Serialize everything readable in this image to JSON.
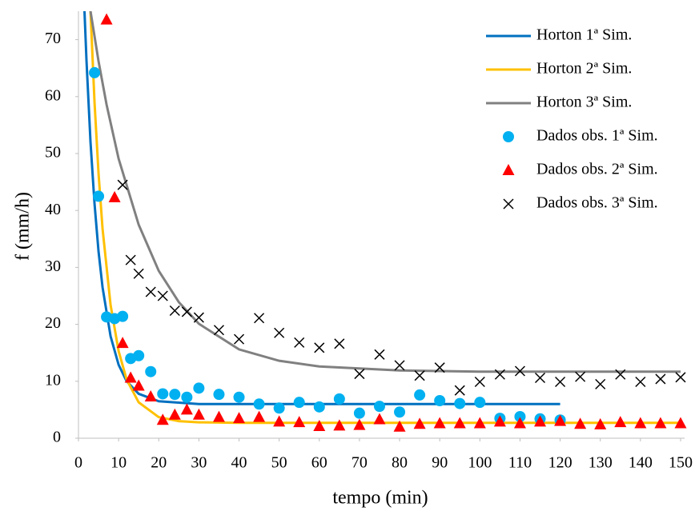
{
  "chart_data": {
    "type": "line",
    "xlabel": "tempo (min)",
    "ylabel": "f (mm/h)",
    "xlim": [
      0,
      151
    ],
    "ylim": [
      0,
      75
    ],
    "xticks": [
      0,
      10,
      20,
      30,
      40,
      50,
      60,
      70,
      80,
      90,
      100,
      110,
      120,
      130,
      140,
      150
    ],
    "yticks": [
      0,
      10,
      20,
      30,
      40,
      50,
      60,
      70
    ],
    "grid": false,
    "legend": "upper right",
    "series": [
      {
        "name": "Horton 1ª Sim.",
        "type": "line",
        "color": "#0070c0",
        "x": [
          1.5,
          2,
          3,
          4,
          5,
          6,
          8,
          10,
          12,
          15,
          20,
          30,
          120
        ],
        "values": [
          75.0,
          66.3,
          52.0,
          41.2,
          32.8,
          26.5,
          17.9,
          12.9,
          10.0,
          7.8,
          6.5,
          6.0,
          6.0
        ]
      },
      {
        "name": "Horton 2ª Sim.",
        "type": "line",
        "color": "#ffc000",
        "x": [
          3,
          4,
          5,
          6,
          8,
          10,
          12,
          15,
          20,
          25,
          30,
          40,
          150
        ],
        "values": [
          75.0,
          59.0,
          46.5,
          36.8,
          23.4,
          15.3,
          10.3,
          6.3,
          3.7,
          3.0,
          2.8,
          2.7,
          2.7
        ]
      },
      {
        "name": "Horton 3ª Sim.",
        "type": "line",
        "color": "#808080",
        "x": [
          3,
          5,
          7,
          10,
          15,
          20,
          25,
          30,
          40,
          50,
          60,
          80,
          100,
          150
        ],
        "values": [
          75.0,
          66.2,
          58.6,
          49.1,
          37.5,
          29.4,
          23.9,
          20.1,
          15.6,
          13.6,
          12.6,
          11.9,
          11.7,
          11.7
        ]
      },
      {
        "name": "Dados obs. 1ª Sim.",
        "type": "scatter",
        "marker": "circle",
        "color": "#00b0f0",
        "x": [
          4,
          5,
          7,
          9,
          11,
          13,
          15,
          18,
          21,
          24,
          27,
          30,
          35,
          40,
          45,
          50,
          55,
          60,
          65,
          70,
          75,
          80,
          85,
          90,
          95,
          100,
          105,
          110,
          115,
          120
        ],
        "values": [
          64.2,
          42.5,
          21.3,
          21.0,
          21.4,
          14.0,
          14.5,
          11.7,
          7.8,
          7.7,
          7.2,
          8.8,
          7.7,
          7.2,
          6.0,
          5.3,
          6.3,
          5.5,
          6.9,
          4.4,
          5.6,
          4.6,
          7.6,
          6.6,
          6.1,
          6.3,
          3.5,
          3.8,
          3.4,
          3.2
        ]
      },
      {
        "name": "Dados obs. 2ª Sim.",
        "type": "scatter",
        "marker": "triangle",
        "color": "#ff0000",
        "x": [
          7,
          9,
          11,
          13,
          15,
          18,
          21,
          24,
          27,
          30,
          35,
          40,
          45,
          50,
          55,
          60,
          65,
          70,
          75,
          80,
          85,
          90,
          95,
          100,
          105,
          110,
          115,
          120,
          125,
          130,
          135,
          140,
          145,
          150
        ],
        "values": [
          73.5,
          42.3,
          16.7,
          10.6,
          9.2,
          7.3,
          3.2,
          4.1,
          5.0,
          4.1,
          3.7,
          3.5,
          3.7,
          2.9,
          2.8,
          2.1,
          2.2,
          2.3,
          3.3,
          2.0,
          2.5,
          2.6,
          2.6,
          2.6,
          2.9,
          2.6,
          2.9,
          3.0,
          2.5,
          2.4,
          2.8,
          2.6,
          2.6,
          2.6
        ]
      },
      {
        "name": "Dados obs. 3ª Sim.",
        "type": "scatter",
        "marker": "x",
        "color": "#000000",
        "x": [
          11,
          13,
          15,
          18,
          21,
          24,
          27,
          30,
          35,
          40,
          45,
          50,
          55,
          60,
          65,
          70,
          75,
          80,
          85,
          90,
          95,
          100,
          105,
          110,
          115,
          120,
          125,
          130,
          135,
          140,
          145,
          150
        ],
        "values": [
          44.5,
          31.3,
          28.9,
          25.7,
          25.0,
          22.4,
          22.2,
          21.2,
          19.0,
          17.4,
          21.1,
          18.5,
          16.8,
          15.9,
          16.6,
          11.3,
          14.7,
          12.8,
          11.0,
          12.4,
          8.4,
          9.9,
          11.2,
          11.8,
          10.6,
          9.9,
          10.8,
          9.5,
          11.2,
          9.9,
          10.4,
          10.7
        ]
      }
    ]
  }
}
